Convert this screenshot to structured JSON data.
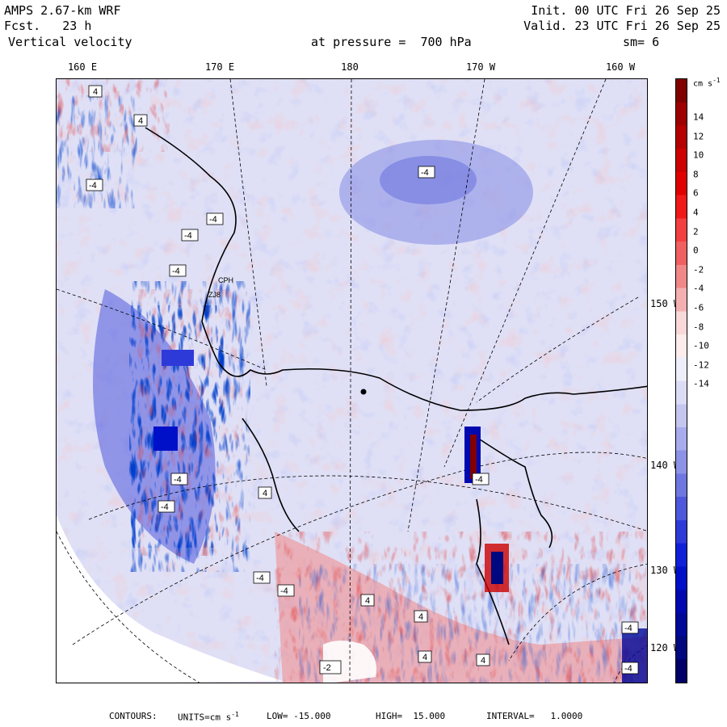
{
  "header": {
    "model": "AMPS 2.67-km WRF",
    "fcst_label": "Fcst.",
    "fcst_value": "23 h",
    "field": "Vertical velocity",
    "pressure_text": "at pressure =  700 hPa",
    "init": "Init. 00 UTC Fri 26 Sep 25",
    "valid": "Valid. 23 UTC Fri 26 Sep 25",
    "smooth": "sm= 6"
  },
  "longitude_labels": [
    "160 E",
    "170 E",
    "180",
    "170 W",
    "160 W"
  ],
  "latitude_labels": [
    "150 W",
    "140 W",
    "130 W",
    "120 W"
  ],
  "colorbar": {
    "units": "cm s",
    "units_exp": "-1",
    "ticks": [
      "14",
      "12",
      "10",
      "8",
      "6",
      "4",
      "2",
      "0",
      "-2",
      "-4",
      "-6",
      "-8",
      "-10",
      "-12",
      "-14"
    ],
    "colors": [
      "#800000",
      "#9c0000",
      "#b40000",
      "#cc0000",
      "#e00000",
      "#f01818",
      "#f24040",
      "#f06060",
      "#f08888",
      "#f4b0b0",
      "#f8d8d8",
      "#fcecec",
      "#eeeefa",
      "#dcdcf6",
      "#c4c6f0",
      "#a8acec",
      "#8c92e6",
      "#6e76e0",
      "#4e58dc",
      "#2e3ad8",
      "#1020d8",
      "#0010c8",
      "#0008b0",
      "#000898",
      "#000880",
      "#000068"
    ]
  },
  "map": {
    "land_color": "#ffffff",
    "contour_labels": [
      "4",
      "-4",
      "4",
      "-4",
      "-4",
      "-4",
      "-4",
      "-4",
      "-4",
      "4",
      "-4",
      "-4",
      "-4",
      "-4",
      "4",
      "4",
      "4",
      "4",
      "-4",
      "-2"
    ],
    "station_labels": [
      "CPH",
      "ZJ8"
    ]
  },
  "footer": {
    "contours_label": "CONTOURS:",
    "units_label": "UNITS=cm s",
    "units_exp": "-1",
    "low": "LOW= -15.000",
    "high": "HIGH=  15.000",
    "interval": "INTERVAL=   1.0000"
  }
}
